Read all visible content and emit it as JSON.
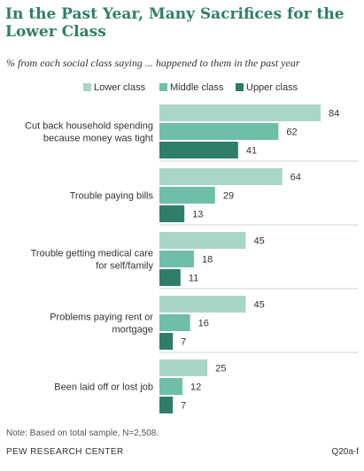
{
  "title": "In the Past Year, Many Sacrifices for the Lower Class",
  "subtitle": "% from each social class saying ... happened to them in the past year",
  "note": "Note: Based on total sample, N=2,508.",
  "source": "PEW RESEARCH CENTER",
  "question_ref": "Q20a-f",
  "colors": {
    "Lower class": "#a9d6c7",
    "Middle class": "#6fbfa8",
    "Upper class": "#2f7e6a",
    "divider": "#c8d8d2"
  },
  "chart_data": {
    "type": "bar",
    "orientation": "horizontal",
    "categories": [
      [
        "Cut back household spending",
        "because money was tight"
      ],
      [
        "Trouble paying bills"
      ],
      [
        "Trouble getting medical care",
        "for self/family"
      ],
      [
        "Problems paying rent or",
        "mortgage"
      ],
      [
        "Been laid off or lost job"
      ]
    ],
    "series": [
      {
        "name": "Lower class",
        "values": [
          84,
          64,
          45,
          45,
          25
        ]
      },
      {
        "name": "Middle class",
        "values": [
          62,
          29,
          18,
          16,
          12
        ]
      },
      {
        "name": "Upper class",
        "values": [
          41,
          13,
          11,
          7,
          7
        ]
      }
    ],
    "xlim": [
      0,
      84
    ],
    "legend": "top",
    "grid": false,
    "data_labels": true
  }
}
